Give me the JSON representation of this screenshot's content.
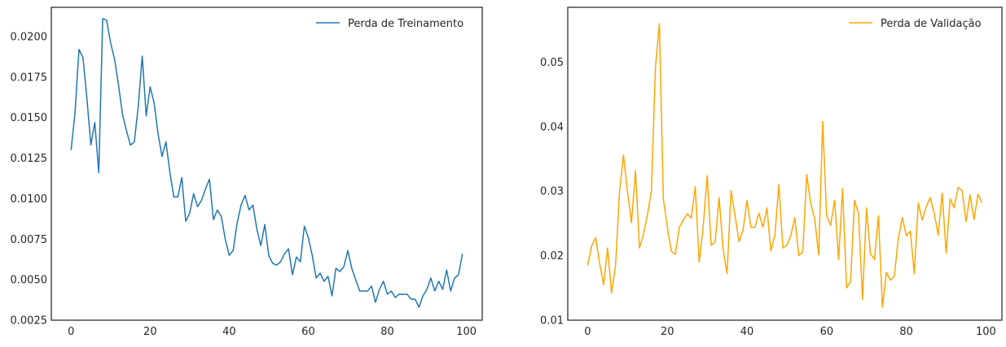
{
  "chart_data": [
    {
      "type": "line",
      "xlim": [
        -5,
        104
      ],
      "ylim": [
        0.0025,
        0.0218
      ],
      "x_ticks": [
        0,
        20,
        40,
        60,
        80,
        100
      ],
      "y_ticks": [
        0.0025,
        0.005,
        0.0075,
        0.01,
        0.0125,
        0.015,
        0.0175,
        0.02
      ],
      "y_tick_labels": [
        "0.0025",
        "0.0050",
        "0.0075",
        "0.0100",
        "0.0125",
        "0.0150",
        "0.0175",
        "0.0200"
      ],
      "legend_position": "top-right",
      "grid": false,
      "series": [
        {
          "name": "Perda de Treinamento",
          "color": "#1f77b4",
          "x_start": 0,
          "values": [
            0.013,
            0.0153,
            0.0192,
            0.0187,
            0.0162,
            0.0133,
            0.0147,
            0.0116,
            0.0211,
            0.021,
            0.0196,
            0.0186,
            0.017,
            0.0152,
            0.0142,
            0.0133,
            0.0135,
            0.0157,
            0.0188,
            0.0151,
            0.0169,
            0.0159,
            0.014,
            0.0126,
            0.0135,
            0.0116,
            0.0101,
            0.0101,
            0.0113,
            0.0086,
            0.0091,
            0.0103,
            0.0095,
            0.0099,
            0.0106,
            0.0112,
            0.0087,
            0.0093,
            0.0089,
            0.0075,
            0.0065,
            0.0068,
            0.0085,
            0.0096,
            0.0102,
            0.0093,
            0.0096,
            0.0081,
            0.0071,
            0.0084,
            0.0065,
            0.006,
            0.0059,
            0.0061,
            0.0066,
            0.0069,
            0.0053,
            0.0064,
            0.0061,
            0.0083,
            0.0076,
            0.0065,
            0.0051,
            0.0054,
            0.0049,
            0.0052,
            0.004,
            0.0057,
            0.0055,
            0.0058,
            0.0068,
            0.0057,
            0.005,
            0.0043,
            0.0043,
            0.0043,
            0.0046,
            0.0036,
            0.0044,
            0.0049,
            0.0041,
            0.0043,
            0.0039,
            0.0041,
            0.0041,
            0.0041,
            0.0038,
            0.0038,
            0.0033,
            0.004,
            0.0044,
            0.0051,
            0.0043,
            0.0049,
            0.0044,
            0.0056,
            0.0043,
            0.0051,
            0.0053,
            0.0066
          ]
        }
      ]
    },
    {
      "type": "line",
      "xlim": [
        -5,
        104
      ],
      "ylim": [
        0.01,
        0.0585
      ],
      "x_ticks": [
        0,
        20,
        40,
        60,
        80,
        100
      ],
      "y_ticks": [
        0.01,
        0.02,
        0.03,
        0.04,
        0.05
      ],
      "y_tick_labels": [
        "0.01",
        "0.02",
        "0.03",
        "0.04",
        "0.05"
      ],
      "legend_position": "top-right",
      "grid": false,
      "series": [
        {
          "name": "Perda de Validação",
          "color": "#ffa500",
          "x_start": 0,
          "values": [
            0.0185,
            0.0215,
            0.0228,
            0.0188,
            0.0155,
            0.0212,
            0.0142,
            0.0185,
            0.03,
            0.0356,
            0.0299,
            0.0251,
            0.0332,
            0.0212,
            0.0233,
            0.0263,
            0.03,
            0.049,
            0.056,
            0.0288,
            0.0244,
            0.0207,
            0.0202,
            0.0244,
            0.0255,
            0.0265,
            0.0258,
            0.0307,
            0.019,
            0.0244,
            0.0324,
            0.0216,
            0.0221,
            0.029,
            0.021,
            0.0172,
            0.0301,
            0.0262,
            0.0222,
            0.0239,
            0.0286,
            0.0244,
            0.0244,
            0.0266,
            0.0244,
            0.0274,
            0.0207,
            0.0232,
            0.031,
            0.0212,
            0.0216,
            0.0231,
            0.0259,
            0.02,
            0.0206,
            0.0326,
            0.0281,
            0.0257,
            0.0201,
            0.0408,
            0.0262,
            0.0247,
            0.0286,
            0.0194,
            0.0304,
            0.015,
            0.016,
            0.0286,
            0.0265,
            0.0132,
            0.0274,
            0.0203,
            0.0194,
            0.0262,
            0.012,
            0.0174,
            0.0162,
            0.0169,
            0.0227,
            0.0259,
            0.0231,
            0.0238,
            0.0172,
            0.0282,
            0.0255,
            0.0276,
            0.029,
            0.0266,
            0.0232,
            0.0297,
            0.0204,
            0.0288,
            0.0274,
            0.0306,
            0.0301,
            0.0253,
            0.0294,
            0.0256,
            0.0295,
            0.0282
          ]
        }
      ]
    }
  ]
}
